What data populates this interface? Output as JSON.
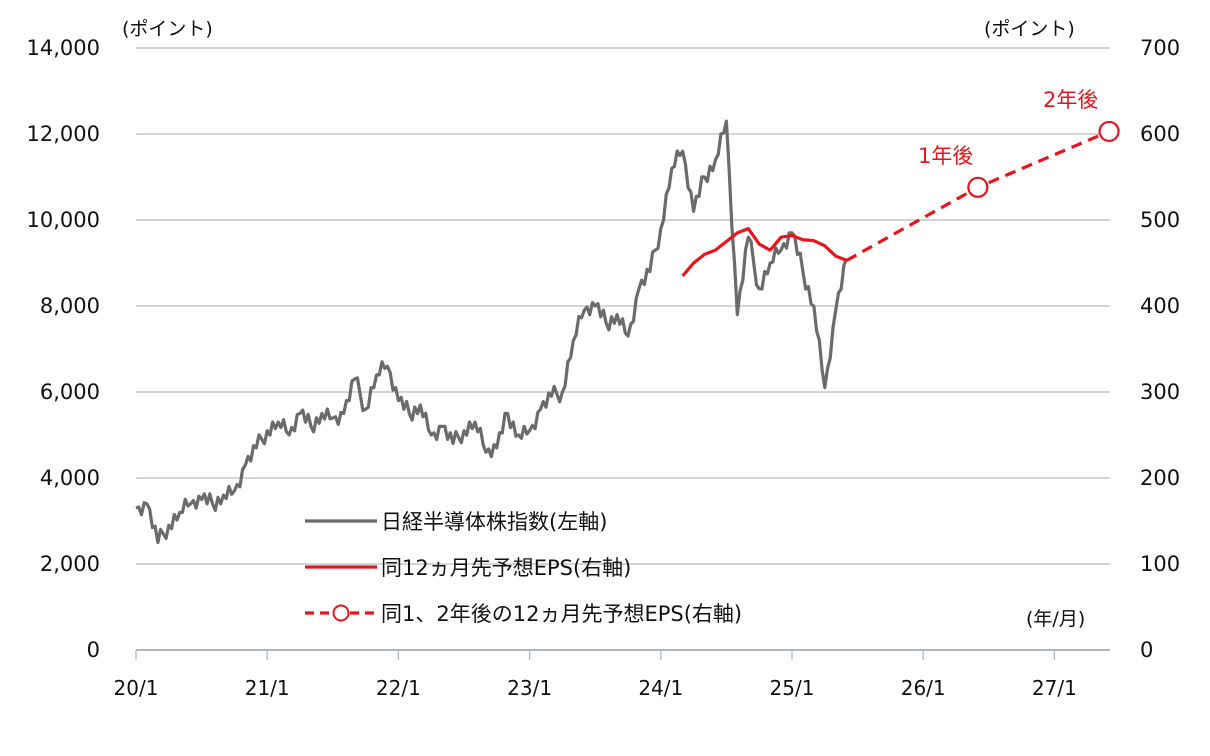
{
  "chart_data": {
    "type": "line",
    "title": "",
    "xlabel": "(年/月)",
    "ylabel_left": "(ポイント)",
    "ylabel_right": "(ポイント)",
    "ylim_left": [
      0,
      14000
    ],
    "ylim_right": [
      0,
      700
    ],
    "yticks_left": [
      "0",
      "2,000",
      "4,000",
      "6,000",
      "8,000",
      "10,000",
      "12,000",
      "14,000"
    ],
    "yticks_right": [
      "0",
      "100",
      "200",
      "300",
      "400",
      "500",
      "600",
      "700"
    ],
    "xticks": [
      "20/1",
      "21/1",
      "22/1",
      "23/1",
      "24/1",
      "25/1",
      "26/1",
      "27/1"
    ],
    "grid": true,
    "legend_position": "lower-center",
    "colors": {
      "index": "#6b6b6b",
      "eps": "#e8141c",
      "grid": "#b8bcc8"
    },
    "series": [
      {
        "name": "日経半導体株指数(左軸)",
        "axis": "left",
        "style": "solid",
        "color": "#6b6b6b",
        "points": [
          [
            "2020-01",
            3300
          ],
          [
            "2020-02",
            3400
          ],
          [
            "2020-03",
            2500
          ],
          [
            "2020-04",
            2900
          ],
          [
            "2020-05",
            3200
          ],
          [
            "2020-06",
            3400
          ],
          [
            "2020-07",
            3500
          ],
          [
            "2020-08",
            3400
          ],
          [
            "2020-09",
            3600
          ],
          [
            "2020-10",
            3700
          ],
          [
            "2020-11",
            4300
          ],
          [
            "2020-12",
            4700
          ],
          [
            "2021-01",
            5100
          ],
          [
            "2021-02",
            5300
          ],
          [
            "2021-03",
            5000
          ],
          [
            "2021-04",
            5500
          ],
          [
            "2021-05",
            5200
          ],
          [
            "2021-06",
            5500
          ],
          [
            "2021-07",
            5400
          ],
          [
            "2021-08",
            5500
          ],
          [
            "2021-09",
            6300
          ],
          [
            "2021-10",
            5600
          ],
          [
            "2021-11",
            6400
          ],
          [
            "2021-12",
            6600
          ],
          [
            "2022-01",
            5800
          ],
          [
            "2022-02",
            5500
          ],
          [
            "2022-03",
            5700
          ],
          [
            "2022-04",
            5000
          ],
          [
            "2022-05",
            5200
          ],
          [
            "2022-06",
            4800
          ],
          [
            "2022-07",
            5100
          ],
          [
            "2022-08",
            5300
          ],
          [
            "2022-09",
            4600
          ],
          [
            "2022-10",
            4700
          ],
          [
            "2022-11",
            5500
          ],
          [
            "2022-12",
            5000
          ],
          [
            "2023-01",
            5100
          ],
          [
            "2023-02",
            5600
          ],
          [
            "2023-03",
            5900
          ],
          [
            "2023-04",
            6000
          ],
          [
            "2023-05",
            7200
          ],
          [
            "2023-06",
            7900
          ],
          [
            "2023-07",
            8000
          ],
          [
            "2023-08",
            7600
          ],
          [
            "2023-09",
            7800
          ],
          [
            "2023-10",
            7300
          ],
          [
            "2023-11",
            8400
          ],
          [
            "2023-12",
            8800
          ],
          [
            "2024-01",
            9800
          ],
          [
            "2024-02",
            11200
          ],
          [
            "2024-03",
            11600
          ],
          [
            "2024-04",
            10200
          ],
          [
            "2024-05",
            11000
          ],
          [
            "2024-06",
            11400
          ],
          [
            "2024-07",
            12300
          ],
          [
            "2024-08",
            7800
          ],
          [
            "2024-09",
            9600
          ],
          [
            "2024-10",
            8400
          ],
          [
            "2024-11",
            9000
          ],
          [
            "2024-12",
            9300
          ],
          [
            "2025-01",
            9700
          ],
          [
            "2025-02",
            8800
          ],
          [
            "2025-03",
            8000
          ],
          [
            "2025-04",
            6100
          ],
          [
            "2025-05",
            7900
          ],
          [
            "2025-06",
            9100
          ]
        ]
      },
      {
        "name": "同12ヵ月先予想EPS(右軸)",
        "axis": "right",
        "style": "solid",
        "color": "#e8141c",
        "points": [
          [
            "2024-03",
            435
          ],
          [
            "2024-04",
            450
          ],
          [
            "2024-05",
            460
          ],
          [
            "2024-06",
            465
          ],
          [
            "2024-07",
            475
          ],
          [
            "2024-08",
            485
          ],
          [
            "2024-09",
            490
          ],
          [
            "2024-10",
            472
          ],
          [
            "2024-11",
            465
          ],
          [
            "2024-12",
            480
          ],
          [
            "2025-01",
            482
          ],
          [
            "2025-02",
            477
          ],
          [
            "2025-03",
            476
          ],
          [
            "2025-04",
            470
          ],
          [
            "2025-05",
            458
          ],
          [
            "2025-06",
            453
          ]
        ]
      },
      {
        "name": "同1、2年後の12ヵ月先予想EPS(右軸)",
        "axis": "right",
        "style": "dashed",
        "marker": "open-circle",
        "color": "#e8141c",
        "points": [
          [
            "2025-06",
            453,
            ""
          ],
          [
            "2026-06",
            538,
            "1年後"
          ],
          [
            "2027-06",
            603,
            "2年後"
          ]
        ]
      }
    ],
    "annotations": [
      "1年後",
      "2年後"
    ]
  },
  "legend": {
    "items": [
      {
        "label": "日経半導体株指数(左軸)"
      },
      {
        "label": "同12ヵ月先予想EPS(右軸)"
      },
      {
        "label": "同1、2年後の12ヵ月先予想EPS(右軸)"
      }
    ]
  },
  "axes": {
    "left_unit": "(ポイント)",
    "right_unit": "(ポイント)",
    "x_unit": "(年/月)"
  },
  "annotations": {
    "one_year": "1年後",
    "two_year": "2年後"
  }
}
